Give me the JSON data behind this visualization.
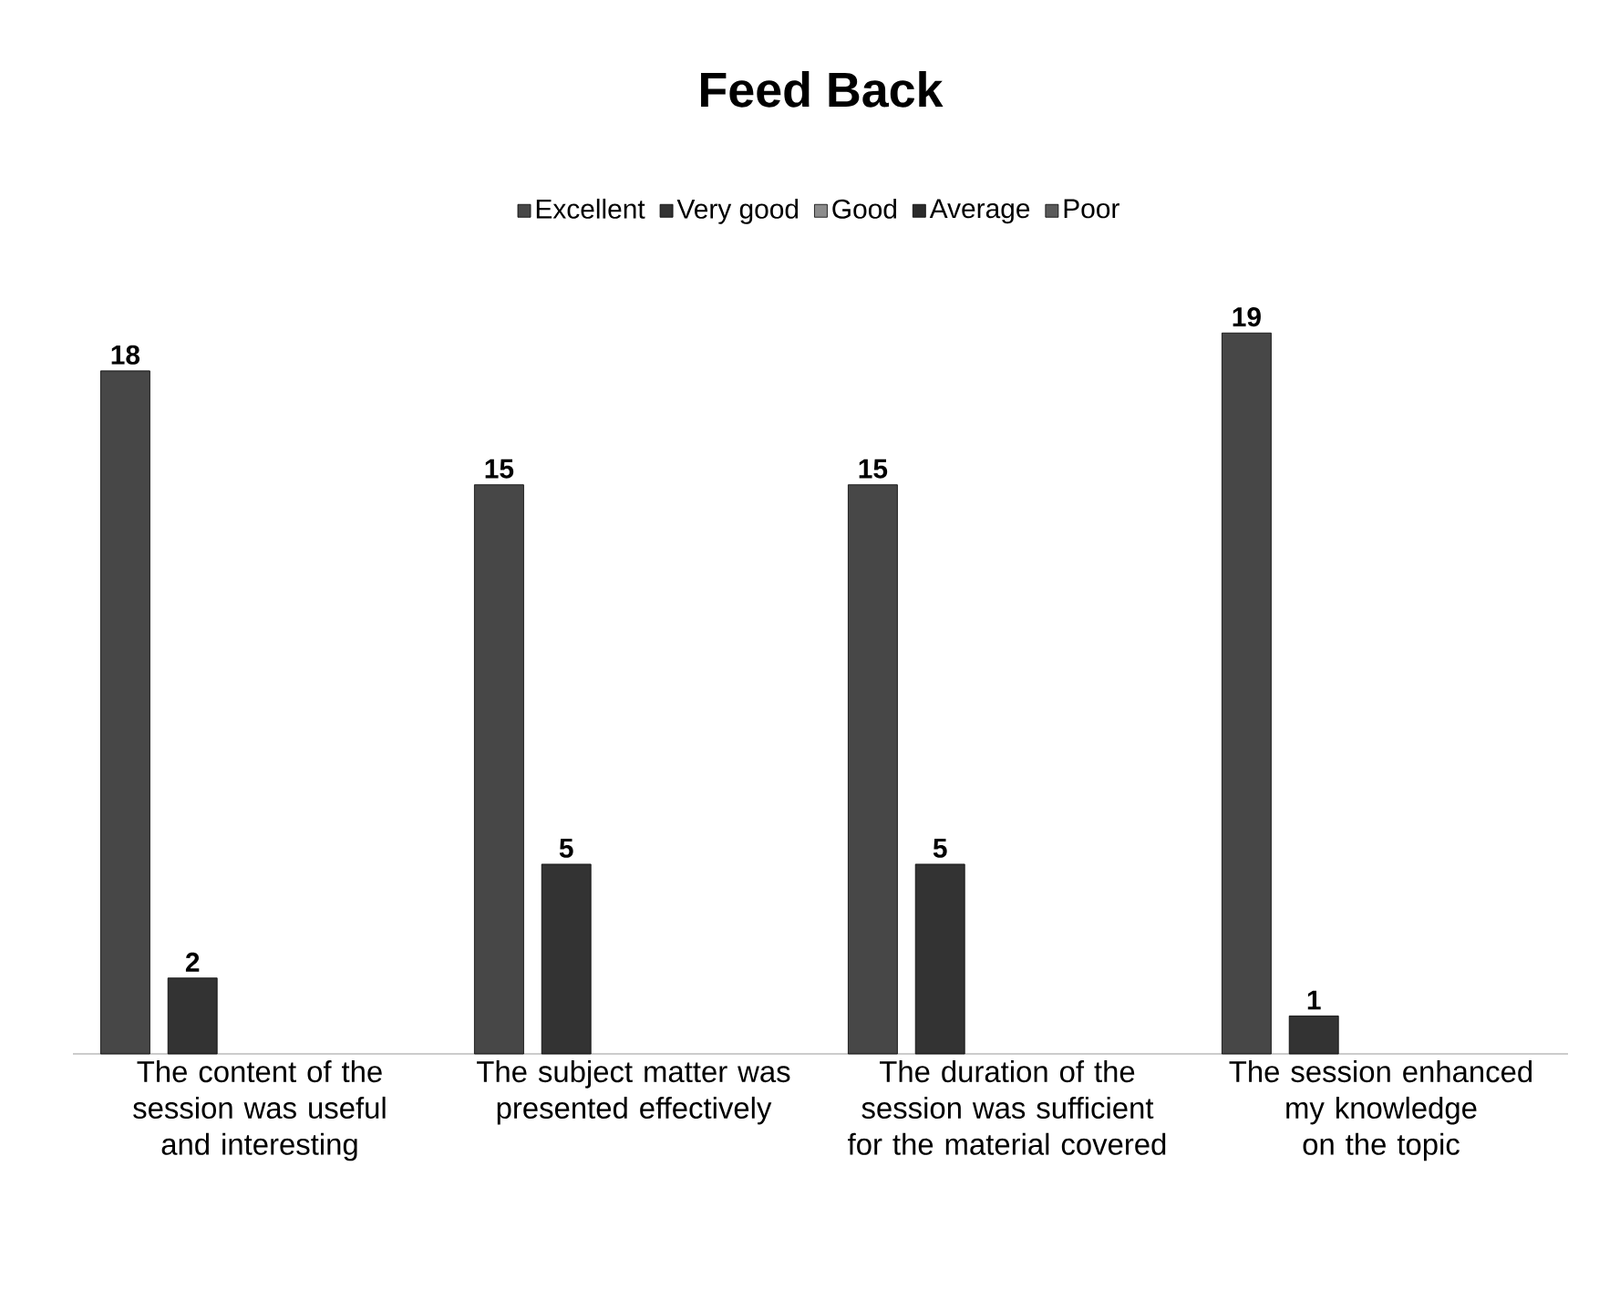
{
  "chart_data": {
    "type": "bar",
    "title": "Feed Back",
    "categories": [
      "The content of the session was useful and interesting",
      "The subject matter was presented effectively",
      "The duration of the session was sufficient for the material covered",
      "The session enhanced my knowledge on the topic"
    ],
    "series": [
      {
        "name": "Excellent",
        "color": "#474747",
        "values": [
          18,
          15,
          15,
          19
        ]
      },
      {
        "name": "Very good",
        "color": "#333333",
        "values": [
          2,
          5,
          5,
          1
        ]
      },
      {
        "name": "Good",
        "color": "#8c8c8c",
        "values": [
          null,
          null,
          null,
          null
        ]
      },
      {
        "name": "Average",
        "color": "#2b2b2b",
        "values": [
          null,
          null,
          null,
          null
        ]
      },
      {
        "name": "Poor",
        "color": "#5a5a5a",
        "values": [
          null,
          null,
          null,
          null
        ]
      }
    ],
    "data_labels": true,
    "legend": "top"
  }
}
